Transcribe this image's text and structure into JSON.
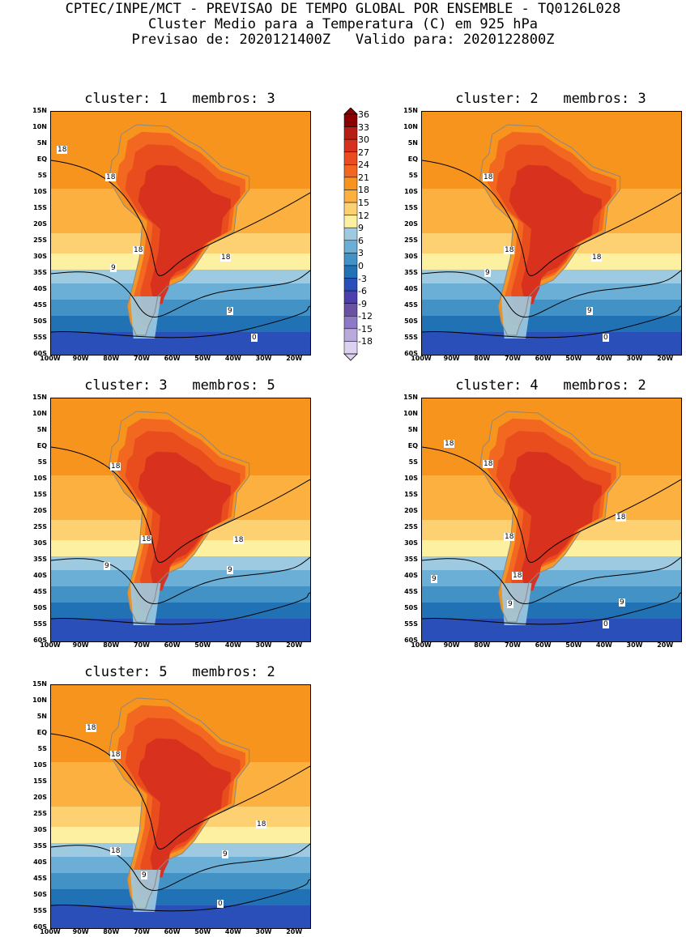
{
  "header": {
    "line1": "CPTEC/INPE/MCT - PREVISAO DE TEMPO GLOBAL POR ENSEMBLE - TQ0126L028",
    "line2": "Cluster Medio para a Temperatura (C) em 925 hPa",
    "line3": "Previsao de: 2020121400Z   Valido para: 2020122800Z"
  },
  "axes": {
    "lat_labels": [
      "15N",
      "10N",
      "5N",
      "EQ",
      "5S",
      "10S",
      "15S",
      "20S",
      "25S",
      "30S",
      "35S",
      "40S",
      "45S",
      "50S",
      "55S",
      "60S"
    ],
    "lon_labels": [
      "100W",
      "90W",
      "80W",
      "70W",
      "60W",
      "50W",
      "40W",
      "30W",
      "20W"
    ]
  },
  "colorbar": {
    "levels": [
      "36",
      "33",
      "30",
      "27",
      "24",
      "21",
      "18",
      "15",
      "12",
      "9",
      "6",
      "3",
      "0",
      "-3",
      "-6",
      "-9",
      "-12",
      "-15",
      "-18"
    ],
    "colors": [
      "#8b0000",
      "#b81d13",
      "#d7301f",
      "#e84c1f",
      "#f26522",
      "#f7941d",
      "#fbb040",
      "#fdd072",
      "#fdf0a0",
      "#9ecae1",
      "#6baed6",
      "#4292c6",
      "#2171b5",
      "#2a4fb8",
      "#4b3fb0",
      "#6a51a3",
      "#8c7bc4",
      "#b9a9dc",
      "#ddd1f0"
    ]
  },
  "panels": [
    {
      "title": "cluster: 1   membros: 3",
      "labels": [
        "18",
        "18",
        "18",
        "18",
        "9",
        "9",
        "0"
      ]
    },
    {
      "title": "cluster: 2   membros: 3",
      "labels": [
        "18",
        "18",
        "18",
        "9",
        "9",
        "0"
      ]
    },
    {
      "title": "cluster: 3   membros: 5",
      "labels": [
        "18",
        "18",
        "18",
        "9",
        "9"
      ]
    },
    {
      "title": "cluster: 4   membros: 2",
      "labels": [
        "18",
        "18",
        "18",
        "18",
        "18",
        "9",
        "9",
        "9",
        "0"
      ]
    },
    {
      "title": "cluster: 5   membros: 2",
      "labels": [
        "18",
        "18",
        "18",
        "18",
        "9",
        "9",
        "0"
      ]
    }
  ]
}
